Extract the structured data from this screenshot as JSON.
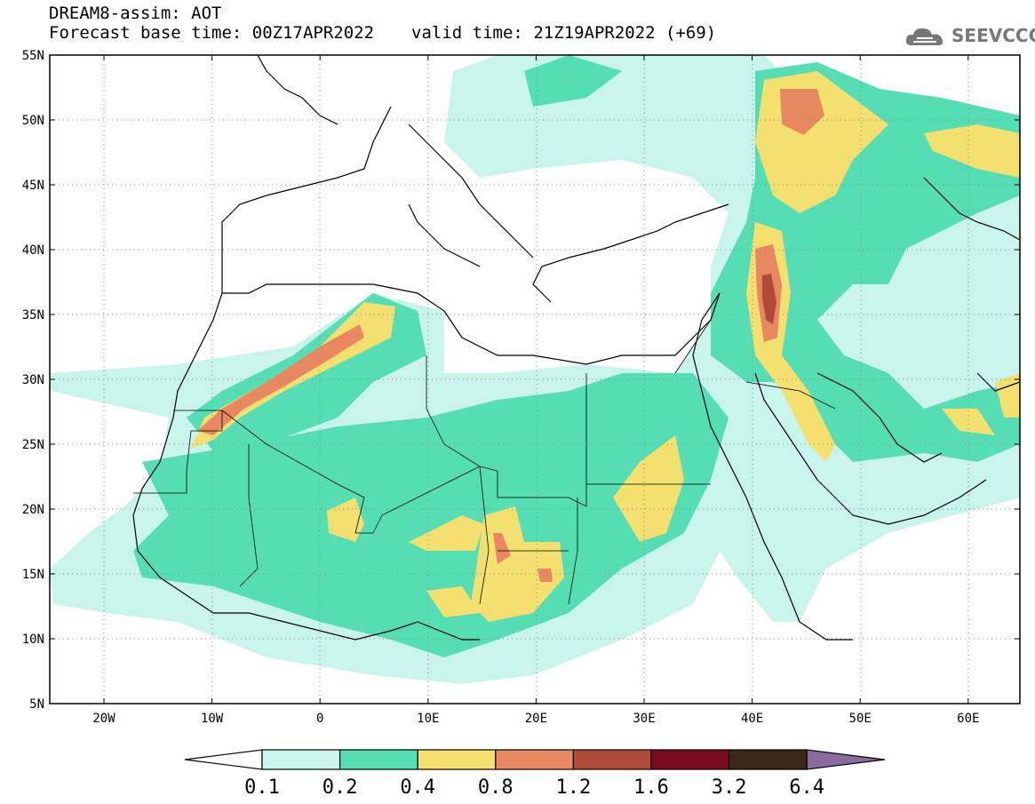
{
  "header": {
    "title": "DREAM8-assim: AOT",
    "base_time": "Forecast base time: 00Z17APR2022",
    "valid_time": "valid time: 21Z19APR2022 (+69)"
  },
  "logo": {
    "text": "SEEVCCC",
    "icon": "cloud-icon"
  },
  "map": {
    "lat_labels": [
      "55N",
      "50N",
      "45N",
      "40N",
      "35N",
      "30N",
      "25N",
      "20N",
      "15N",
      "10N",
      "5N"
    ],
    "lon_labels": [
      "20W",
      "10W",
      "0",
      "10E",
      "20E",
      "30E",
      "40E",
      "50E",
      "60E"
    ]
  },
  "colorbar": {
    "labels": [
      "0.1",
      "0.2",
      "0.4",
      "0.8",
      "1.2",
      "1.6",
      "3.2",
      "6.4"
    ],
    "colors": [
      "#ffffff",
      "#c8f4ec",
      "#55deb4",
      "#f4e06e",
      "#e88860",
      "#b04a38",
      "#7a0a22",
      "#3a2818",
      "#8c6aa0"
    ]
  },
  "colors": {
    "very_light": "#c8f4ec",
    "green": "#55deb4",
    "yellow": "#f4e06e",
    "orange": "#e88860",
    "brown": "#b04a38"
  }
}
